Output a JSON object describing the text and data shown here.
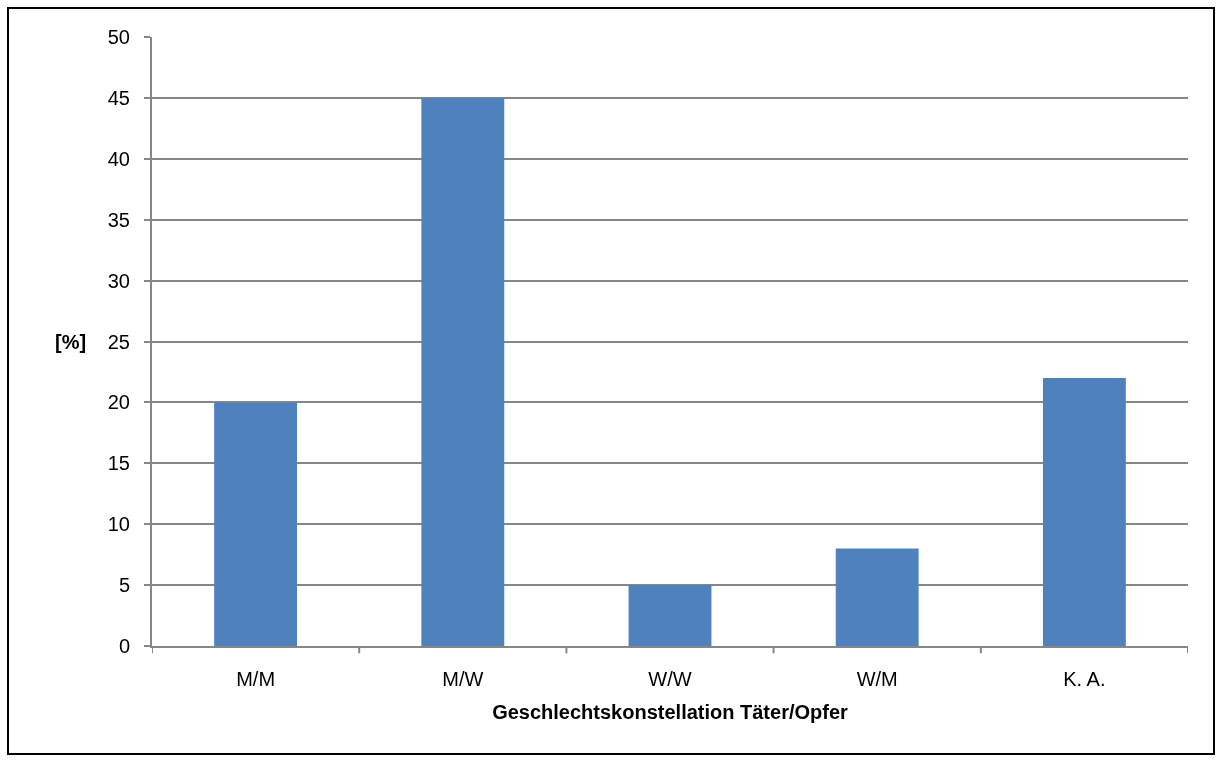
{
  "chart_data": {
    "type": "bar",
    "categories": [
      "M/M",
      "M/W",
      "W/W",
      "W/M",
      "K. A."
    ],
    "values": [
      20,
      45,
      5,
      8,
      22
    ],
    "color": "#4f81bd",
    "xlabel": "Geschlechtskonstellation Täter/Opfer",
    "ylabel": "[%]",
    "ylim": [
      0,
      50
    ],
    "yticks": [
      0,
      5,
      10,
      15,
      20,
      25,
      30,
      35,
      40,
      45,
      50
    ],
    "grid": "y"
  }
}
